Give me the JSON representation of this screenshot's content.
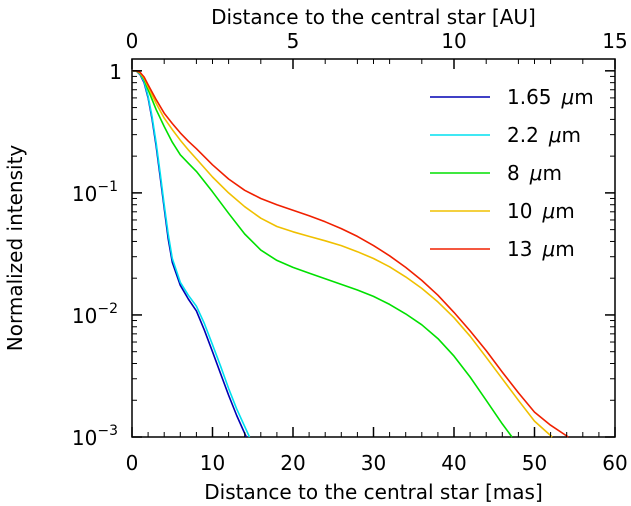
{
  "chart_data": {
    "type": "line",
    "title": "",
    "xlabel": "Distance to the central star [mas]",
    "xlabel_top": "Distance to the central star [AU]",
    "ylabel": "Normalized intensity",
    "xlim": [
      0,
      60
    ],
    "xlim_top": [
      0,
      15
    ],
    "ylim": [
      0.001,
      1.25
    ],
    "yscale": "log",
    "grid": false,
    "legend_position": "top-right",
    "x_ticks": [
      0,
      10,
      20,
      30,
      40,
      50,
      60
    ],
    "x_top_ticks": [
      0,
      5,
      10,
      15
    ],
    "y_ticks": [
      {
        "value": 1,
        "base": "1",
        "exp": ""
      },
      {
        "value": 0.1,
        "base": "10",
        "exp": "−1"
      },
      {
        "value": 0.01,
        "base": "10",
        "exp": "−2"
      },
      {
        "value": 0.001,
        "base": "10",
        "exp": "−3"
      }
    ],
    "series": [
      {
        "name": "1.65 μm",
        "label_value": "1.65",
        "color": "#0000b4",
        "x": [
          0,
          0.5,
          1,
          1.5,
          2,
          2.5,
          3,
          3.5,
          4,
          4.5,
          5,
          6,
          7,
          8,
          9,
          10,
          11,
          12,
          13,
          14.2
        ],
        "y": [
          1.0,
          1.0,
          0.93,
          0.8,
          0.6,
          0.4,
          0.24,
          0.135,
          0.075,
          0.042,
          0.027,
          0.0175,
          0.0135,
          0.0108,
          0.0075,
          0.005,
          0.0033,
          0.0022,
          0.0015,
          0.001
        ]
      },
      {
        "name": "2.2 μm",
        "label_value": "2.2",
        "color": "#00e0f0",
        "x": [
          0,
          0.5,
          1,
          1.5,
          2,
          2.5,
          3,
          3.5,
          4,
          4.5,
          5,
          6,
          7,
          8,
          9,
          10,
          11,
          12,
          13,
          14.6
        ],
        "y": [
          1.0,
          1.0,
          0.94,
          0.82,
          0.62,
          0.42,
          0.255,
          0.145,
          0.08,
          0.046,
          0.029,
          0.0185,
          0.0145,
          0.0118,
          0.0085,
          0.0057,
          0.0038,
          0.0025,
          0.0017,
          0.001
        ]
      },
      {
        "name": "8 μm",
        "label_value": "8",
        "color": "#00e000",
        "x": [
          0,
          0.5,
          1,
          1.5,
          2,
          3,
          4,
          5,
          6,
          7,
          8,
          10,
          12,
          14,
          16,
          18,
          20,
          22,
          24,
          26,
          28,
          30,
          32,
          34,
          36,
          38,
          40,
          42,
          44,
          46,
          47.2
        ],
        "y": [
          1.0,
          1.0,
          0.95,
          0.85,
          0.7,
          0.48,
          0.35,
          0.26,
          0.205,
          0.175,
          0.15,
          0.102,
          0.068,
          0.046,
          0.034,
          0.028,
          0.0245,
          0.022,
          0.0198,
          0.0178,
          0.016,
          0.0142,
          0.0122,
          0.0102,
          0.0083,
          0.0064,
          0.0046,
          0.0031,
          0.002,
          0.00128,
          0.001
        ]
      },
      {
        "name": "10 μm",
        "label_value": "10",
        "color": "#f0c000",
        "x": [
          0,
          0.5,
          1,
          1.5,
          2,
          3,
          4,
          5,
          6,
          7,
          8,
          10,
          12,
          14,
          16,
          18,
          20,
          22,
          24,
          26,
          28,
          30,
          32,
          34,
          36,
          38,
          40,
          42,
          44,
          46,
          48,
          50,
          52.2
        ],
        "y": [
          1.0,
          1.0,
          0.96,
          0.87,
          0.74,
          0.54,
          0.41,
          0.33,
          0.27,
          0.225,
          0.19,
          0.135,
          0.1,
          0.077,
          0.062,
          0.053,
          0.048,
          0.044,
          0.0405,
          0.037,
          0.033,
          0.029,
          0.0248,
          0.0205,
          0.0165,
          0.0128,
          0.0095,
          0.0067,
          0.0045,
          0.003,
          0.002,
          0.00135,
          0.001
        ]
      },
      {
        "name": "13 μm",
        "label_value": "13",
        "color": "#f02000",
        "x": [
          0,
          0.5,
          1,
          1.5,
          2,
          3,
          4,
          5,
          6,
          7,
          8,
          10,
          12,
          14,
          16,
          18,
          20,
          22,
          24,
          26,
          28,
          30,
          32,
          34,
          36,
          38,
          40,
          42,
          44,
          46,
          48,
          50,
          52,
          54.2
        ],
        "y": [
          1.0,
          1.0,
          0.97,
          0.89,
          0.77,
          0.58,
          0.45,
          0.37,
          0.31,
          0.265,
          0.23,
          0.17,
          0.13,
          0.105,
          0.09,
          0.08,
          0.072,
          0.065,
          0.058,
          0.051,
          0.044,
          0.037,
          0.0305,
          0.0245,
          0.0192,
          0.0145,
          0.0105,
          0.0074,
          0.0051,
          0.0034,
          0.0023,
          0.0016,
          0.00125,
          0.001
        ]
      }
    ]
  }
}
